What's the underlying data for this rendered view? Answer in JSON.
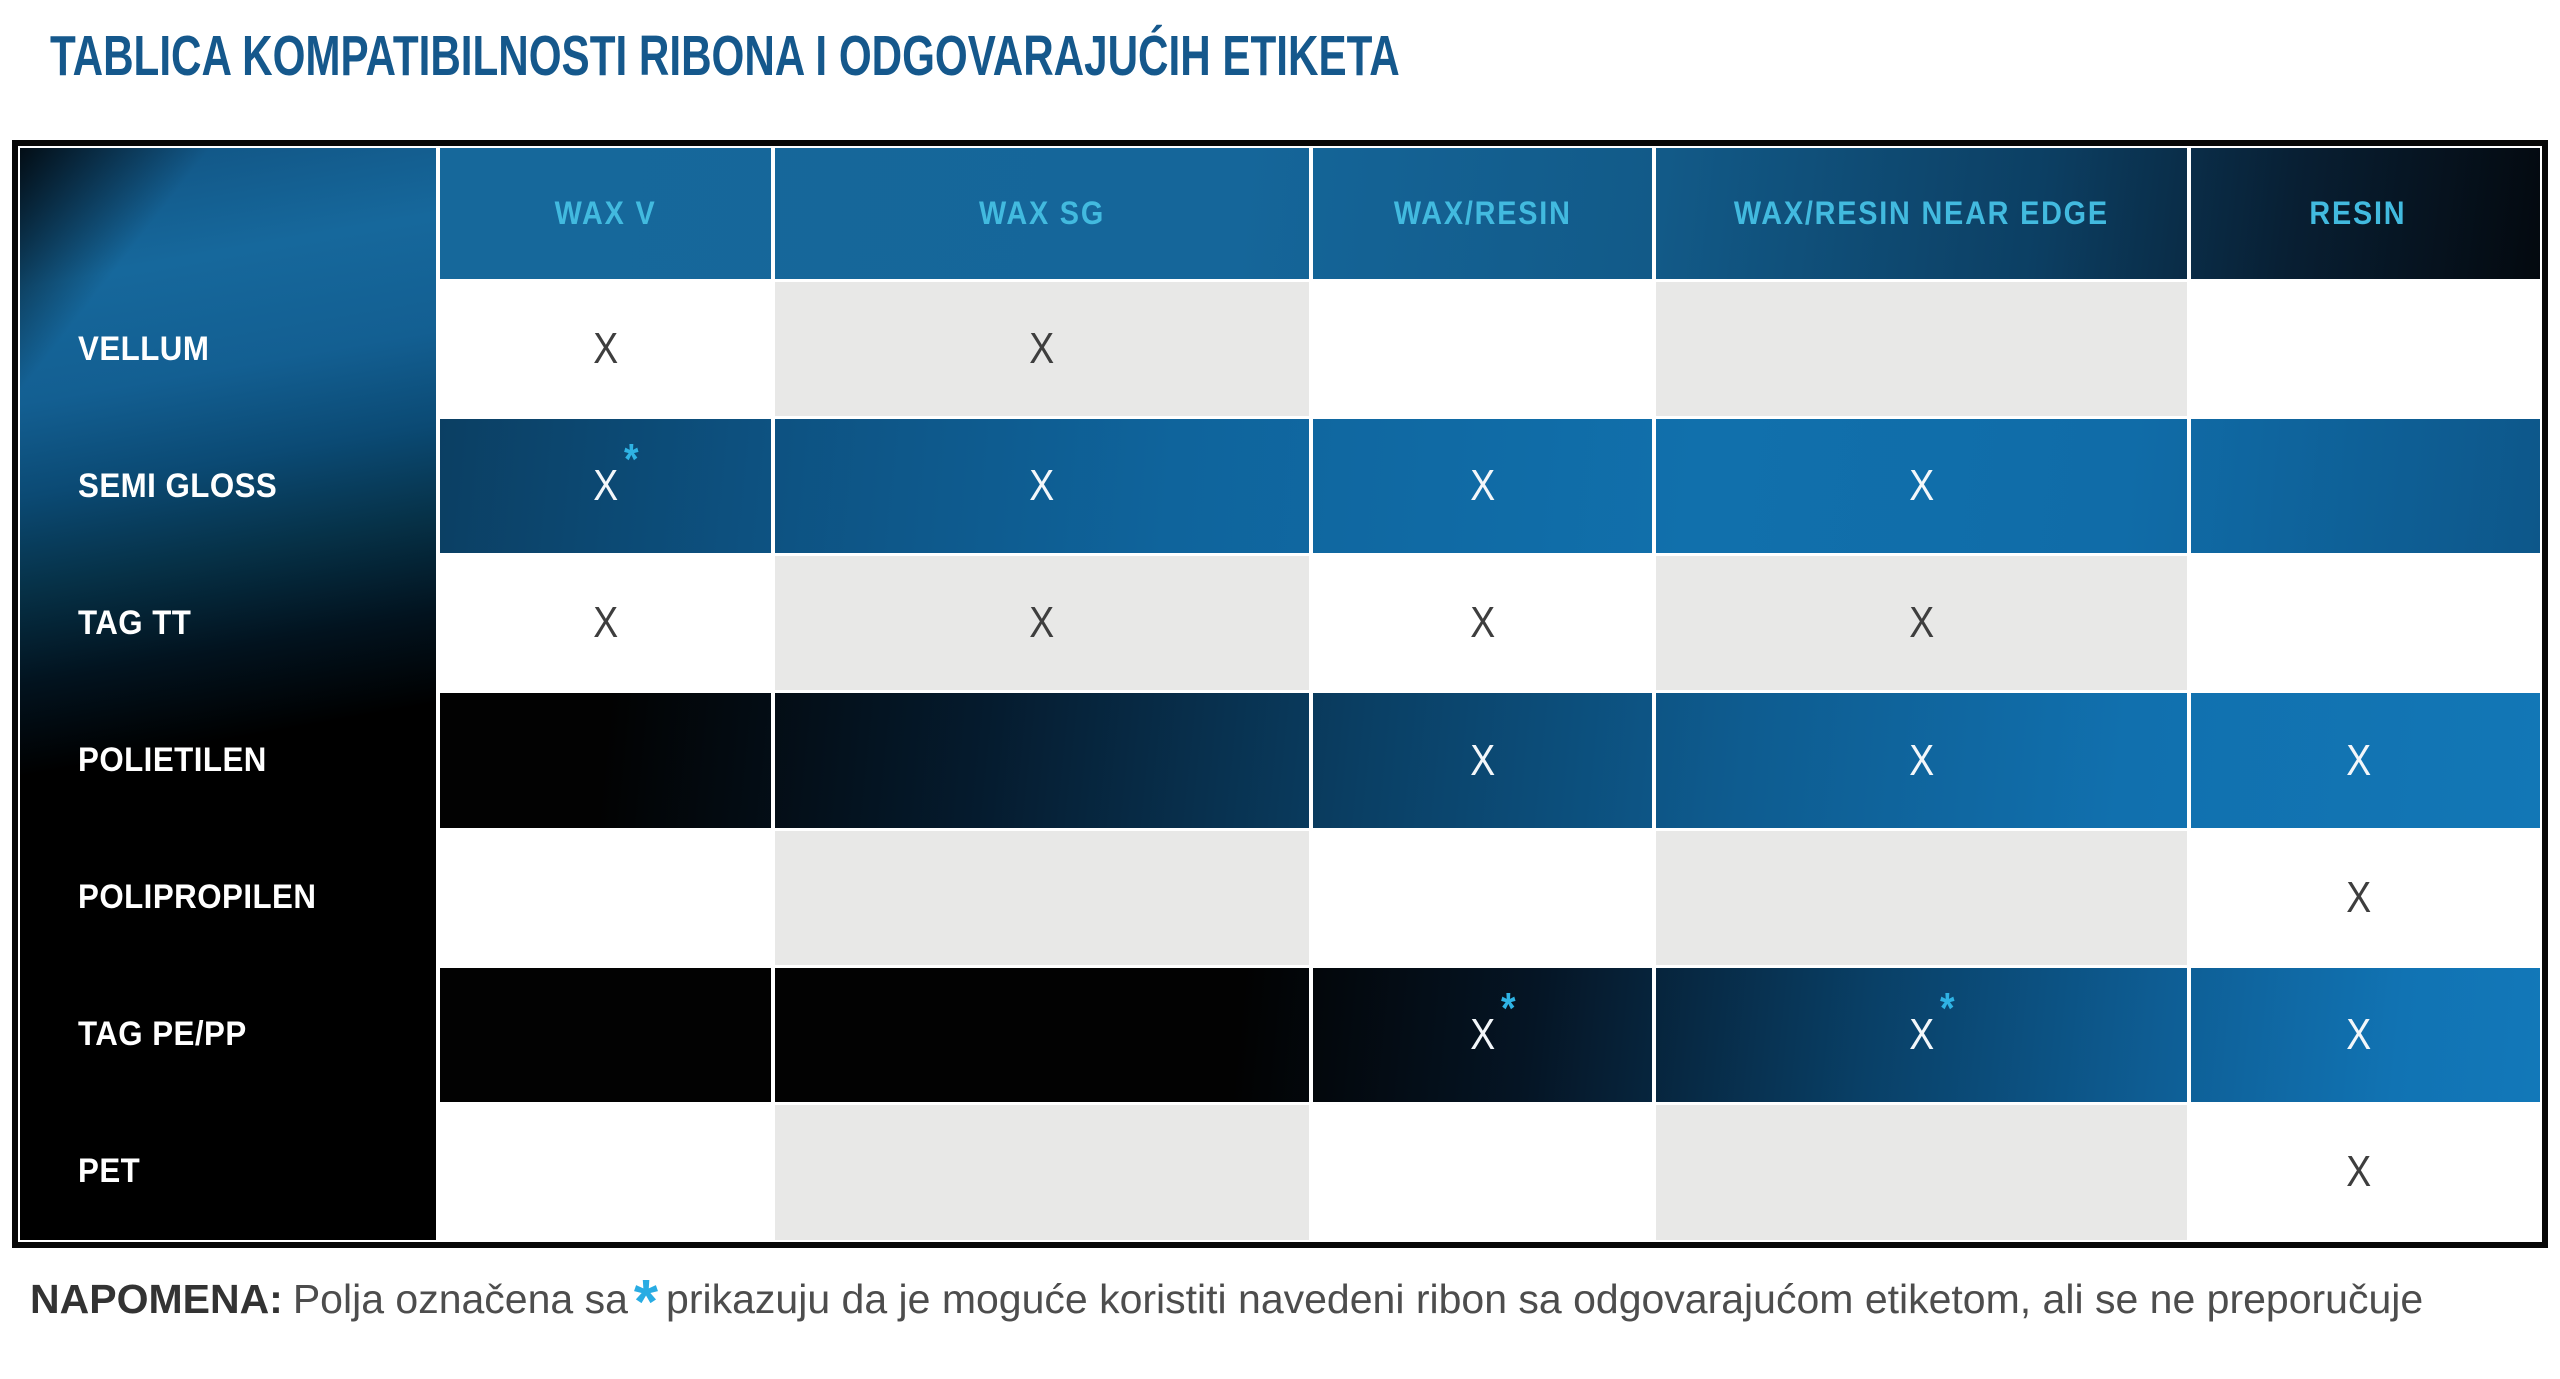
{
  "page": {
    "title": "TABLICA KOMPATIBILNOSTI RIBONA I ODGOVARAJUĆIH ETIKETA"
  },
  "note": {
    "label": "NAPOMENA:",
    "before": "Polja označena sa",
    "asterisk": "*",
    "after": "prikazuju da je moguće koristiti navedeni ribon sa odgovarajućom etiketom, ali se ne preporučuje"
  },
  "table": {
    "columns": [
      "WAX V",
      "WAX SG",
      "WAX/RESIN",
      "WAX/RESIN NEAR EDGE",
      "RESIN"
    ],
    "rows": [
      {
        "label": "VELLUM",
        "cells": [
          {
            "mark": "X"
          },
          {
            "mark": "X"
          },
          {},
          {},
          {}
        ]
      },
      {
        "label": "SEMI GLOSS",
        "cells": [
          {
            "mark": "X",
            "asterisk": "*"
          },
          {
            "mark": "X"
          },
          {
            "mark": "X"
          },
          {
            "mark": "X"
          },
          {}
        ]
      },
      {
        "label": "TAG TT",
        "cells": [
          {
            "mark": "X"
          },
          {
            "mark": "X"
          },
          {
            "mark": "X"
          },
          {
            "mark": "X"
          },
          {}
        ]
      },
      {
        "label": "POLIETILEN",
        "cells": [
          {},
          {},
          {
            "mark": "X"
          },
          {
            "mark": "X"
          },
          {
            "mark": "X"
          }
        ]
      },
      {
        "label": "POLIPROPILEN",
        "cells": [
          {},
          {},
          {},
          {},
          {
            "mark": "X"
          }
        ]
      },
      {
        "label": "TAG PE/PP",
        "cells": [
          {},
          {},
          {
            "mark": "X",
            "asterisk": "*"
          },
          {
            "mark": "X",
            "asterisk": "*"
          },
          {
            "mark": "X"
          }
        ]
      },
      {
        "label": "PET",
        "cells": [
          {},
          {},
          {},
          {},
          {
            "mark": "X"
          }
        ]
      }
    ]
  },
  "colors": {
    "title": "#15588C",
    "header_text": "#42BADF",
    "asterisk": "#2FB3E4",
    "row_blue": "#1170AC",
    "row_black": "#020202",
    "cell_shade": "#E8E8E7",
    "dark_mark": "#3E3E3E",
    "light_mark": "#F3F7FA",
    "border": "#070707"
  }
}
